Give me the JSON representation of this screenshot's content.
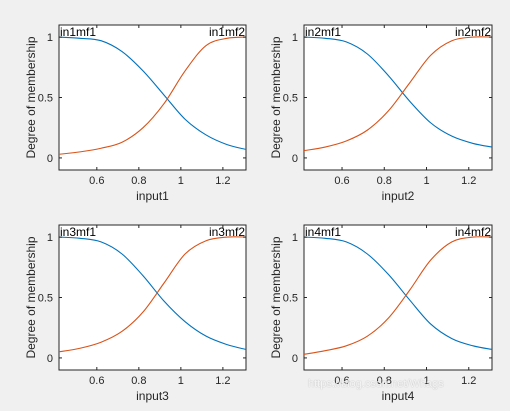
{
  "watermark": "https://blog.csdn.net/Whags",
  "colors": {
    "mf1": "#0072BD",
    "mf2": "#D95319",
    "axes": "#262626",
    "background": "#f0f0f0"
  },
  "chart_data": [
    {
      "type": "line",
      "title": "",
      "xlabel": "input1",
      "ylabel": "Degree of membership",
      "xlim": [
        0.42,
        1.31
      ],
      "ylim": [
        -0.1,
        1.1
      ],
      "xticks": [
        0.6,
        0.8,
        1,
        1.2
      ],
      "xtick_labels": [
        "0.6",
        "0.8",
        "1",
        "1.2"
      ],
      "yticks": [
        0,
        0.5,
        1
      ],
      "ytick_labels": [
        "0",
        "0.5",
        "1"
      ],
      "mf_labels": [
        "in1mf1",
        "in1mf2"
      ],
      "x": [
        0.42,
        0.52,
        0.62,
        0.72,
        0.82,
        0.92,
        1.02,
        1.12,
        1.22,
        1.31
      ],
      "series": [
        {
          "values": [
            1.0,
            0.99,
            0.97,
            0.88,
            0.72,
            0.52,
            0.32,
            0.19,
            0.11,
            0.07
          ]
        },
        {
          "values": [
            0.03,
            0.05,
            0.08,
            0.13,
            0.25,
            0.45,
            0.72,
            0.93,
            0.99,
            1.0
          ]
        }
      ]
    },
    {
      "type": "line",
      "title": "",
      "xlabel": "input2",
      "ylabel": "Degree of membership",
      "xlim": [
        0.42,
        1.31
      ],
      "ylim": [
        -0.1,
        1.1
      ],
      "xticks": [
        0.6,
        0.8,
        1,
        1.2
      ],
      "xtick_labels": [
        "0.6",
        "0.8",
        "1",
        "1.2"
      ],
      "yticks": [
        0,
        0.5,
        1
      ],
      "ytick_labels": [
        "0",
        "0.5",
        "1"
      ],
      "mf_labels": [
        "in2mf1",
        "in2mf2"
      ],
      "x": [
        0.42,
        0.52,
        0.62,
        0.72,
        0.82,
        0.92,
        1.02,
        1.12,
        1.22,
        1.31
      ],
      "series": [
        {
          "values": [
            1.0,
            0.99,
            0.96,
            0.86,
            0.68,
            0.47,
            0.29,
            0.18,
            0.12,
            0.09
          ]
        },
        {
          "values": [
            0.06,
            0.09,
            0.14,
            0.23,
            0.39,
            0.62,
            0.85,
            0.97,
            1.0,
            1.0
          ]
        }
      ]
    },
    {
      "type": "line",
      "title": "",
      "xlabel": "input3",
      "ylabel": "Degree of membership",
      "xlim": [
        0.42,
        1.31
      ],
      "ylim": [
        -0.1,
        1.1
      ],
      "xticks": [
        0.6,
        0.8,
        1,
        1.2
      ],
      "xtick_labels": [
        "0.6",
        "0.8",
        "1",
        "1.2"
      ],
      "yticks": [
        0,
        0.5,
        1
      ],
      "ytick_labels": [
        "0",
        "0.5",
        "1"
      ],
      "mf_labels": [
        "in3mf1",
        "in3mf2"
      ],
      "x": [
        0.42,
        0.52,
        0.62,
        0.72,
        0.82,
        0.92,
        1.02,
        1.12,
        1.22,
        1.31
      ],
      "series": [
        {
          "values": [
            1.0,
            0.99,
            0.96,
            0.86,
            0.68,
            0.47,
            0.3,
            0.18,
            0.11,
            0.07
          ]
        },
        {
          "values": [
            0.05,
            0.08,
            0.13,
            0.22,
            0.38,
            0.62,
            0.86,
            0.97,
            1.0,
            1.0
          ]
        }
      ]
    },
    {
      "type": "line",
      "title": "",
      "xlabel": "input4",
      "ylabel": "Degree of membership",
      "xlim": [
        0.42,
        1.31
      ],
      "ylim": [
        -0.1,
        1.1
      ],
      "xticks": [
        0.6,
        0.8,
        1,
        1.2
      ],
      "xtick_labels": [
        "0.6",
        "0.8",
        "1",
        "1.2"
      ],
      "yticks": [
        0,
        0.5,
        1
      ],
      "ytick_labels": [
        "0",
        "0.5",
        "1"
      ],
      "mf_labels": [
        "in4mf1",
        "in4mf2"
      ],
      "x": [
        0.42,
        0.52,
        0.62,
        0.72,
        0.82,
        0.92,
        1.02,
        1.12,
        1.22,
        1.31
      ],
      "series": [
        {
          "values": [
            1.0,
            0.99,
            0.96,
            0.86,
            0.69,
            0.48,
            0.28,
            0.16,
            0.1,
            0.07
          ]
        },
        {
          "values": [
            0.03,
            0.06,
            0.1,
            0.18,
            0.33,
            0.56,
            0.81,
            0.96,
            1.0,
            1.0
          ]
        }
      ]
    }
  ]
}
